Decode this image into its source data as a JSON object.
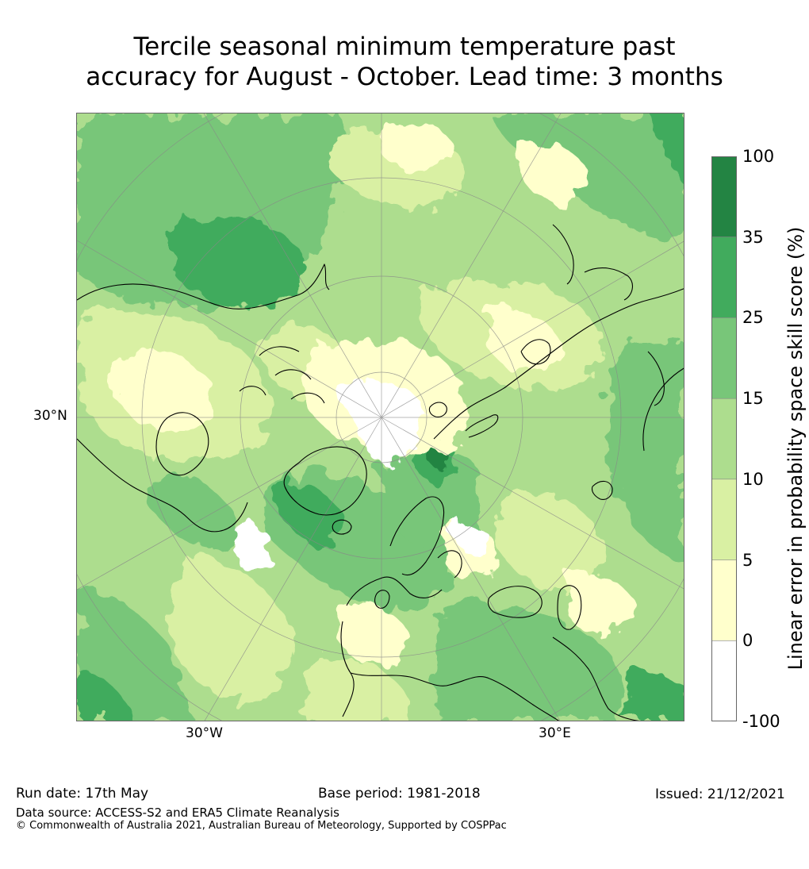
{
  "title": {
    "line1": "Tercile seasonal minimum temperature past",
    "line2": "accuracy for August - October. Lead time: 3 months"
  },
  "map": {
    "projection": "polar-stereographic-north",
    "axis_labels": {
      "left": "30°N",
      "bottom_left": "30°W",
      "bottom_right": "30°E"
    },
    "category_colors": {
      "neg100_0": "#ffffff",
      "0_5": "#ffffcc",
      "5_10": "#d9f0a3",
      "10_15": "#addd8e",
      "15_25": "#78c679",
      "25_35": "#41ab5d",
      "35_100": "#238443"
    },
    "coastline_color": "#000000",
    "graticule_color": "#888888"
  },
  "colorbar": {
    "label": "Linear error in probability space skill score (%)",
    "ticks": [
      "100",
      "35",
      "25",
      "15",
      "10",
      "5",
      "0",
      "-100"
    ],
    "bins": [
      {
        "from": 35,
        "to": 100,
        "color": "#238443"
      },
      {
        "from": 25,
        "to": 35,
        "color": "#41ab5d"
      },
      {
        "from": 15,
        "to": 25,
        "color": "#78c679"
      },
      {
        "from": 10,
        "to": 15,
        "color": "#addd8e"
      },
      {
        "from": 5,
        "to": 10,
        "color": "#d9f0a3"
      },
      {
        "from": 0,
        "to": 5,
        "color": "#ffffcc"
      },
      {
        "from": -100,
        "to": 0,
        "color": "#ffffff"
      }
    ]
  },
  "footer": {
    "run_date": "Run date: 17th May",
    "base_period": "Base period: 1981-2018",
    "issued": "Issued: 21/12/2021",
    "data_source": "Data source: ACCESS-S2 and ERA5 Climate Reanalysis",
    "copyright": "© Commonwealth of Australia 2021, Australian Bureau of Meteorology, Supported by COSPPac"
  }
}
